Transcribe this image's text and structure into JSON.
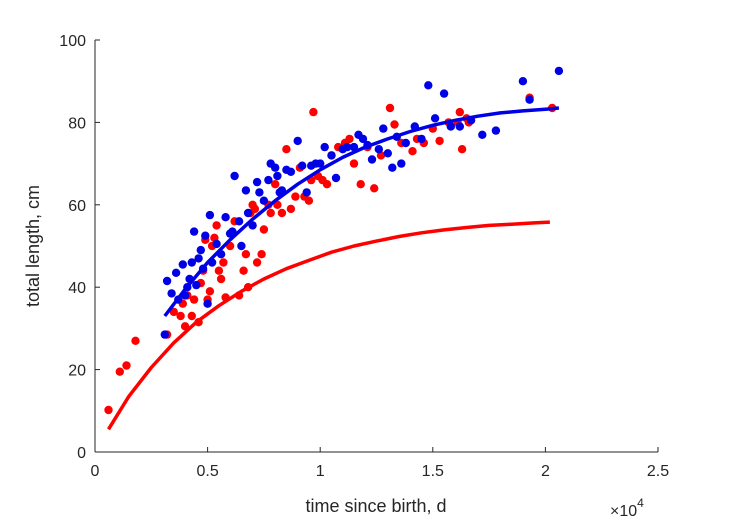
{
  "chart_data": {
    "type": "scatter",
    "title": "",
    "xlabel": "time since birth, d",
    "ylabel": "total length, cm",
    "x_multiplier_base": "×10",
    "x_multiplier_exponent": "4",
    "xlim": [
      0,
      25000
    ],
    "ylim": [
      0,
      100
    ],
    "x_ticks": [
      0,
      5000,
      10000,
      15000,
      20000,
      25000
    ],
    "x_tick_labels": [
      "0",
      "0.5",
      "1",
      "1.5",
      "2",
      "2.5"
    ],
    "y_ticks": [
      0,
      20,
      40,
      60,
      80,
      100
    ],
    "y_tick_labels": [
      "0",
      "20",
      "40",
      "60",
      "80",
      "100"
    ],
    "grid": false,
    "colors": {
      "red": "#ff0000",
      "blue": "#0000e6",
      "axis": "#262626"
    },
    "series": [
      {
        "kind": "points",
        "color": "red",
        "points": [
          [
            600,
            10.2
          ],
          [
            1100,
            19.5
          ],
          [
            1400,
            21
          ],
          [
            1800,
            27
          ],
          [
            3200,
            28.5
          ],
          [
            3500,
            34
          ],
          [
            3800,
            33
          ],
          [
            3900,
            36
          ],
          [
            4000,
            30.5
          ],
          [
            4100,
            38
          ],
          [
            4300,
            33
          ],
          [
            4400,
            37
          ],
          [
            4600,
            31.5
          ],
          [
            4700,
            41
          ],
          [
            4800,
            44
          ],
          [
            4900,
            51.5
          ],
          [
            5000,
            37
          ],
          [
            5100,
            39
          ],
          [
            5200,
            50
          ],
          [
            5300,
            52
          ],
          [
            5400,
            55
          ],
          [
            5500,
            44
          ],
          [
            5600,
            42
          ],
          [
            5700,
            46
          ],
          [
            5800,
            37.5
          ],
          [
            6000,
            50
          ],
          [
            6200,
            56
          ],
          [
            6400,
            38
          ],
          [
            6600,
            44
          ],
          [
            6700,
            48
          ],
          [
            6800,
            40
          ],
          [
            6900,
            58
          ],
          [
            7000,
            60
          ],
          [
            7100,
            59
          ],
          [
            7200,
            46
          ],
          [
            7400,
            48
          ],
          [
            7500,
            54
          ],
          [
            7700,
            60
          ],
          [
            7800,
            58
          ],
          [
            8000,
            65
          ],
          [
            8100,
            60
          ],
          [
            8300,
            58
          ],
          [
            8500,
            73.5
          ],
          [
            8700,
            59
          ],
          [
            8900,
            62
          ],
          [
            9100,
            69
          ],
          [
            9300,
            62
          ],
          [
            9500,
            61
          ],
          [
            9600,
            66
          ],
          [
            9700,
            82.5
          ],
          [
            9900,
            67
          ],
          [
            10100,
            66
          ],
          [
            10300,
            65
          ],
          [
            10500,
            72
          ],
          [
            10800,
            74
          ],
          [
            11100,
            75
          ],
          [
            11300,
            76
          ],
          [
            11500,
            70
          ],
          [
            11800,
            65
          ],
          [
            12100,
            74
          ],
          [
            12400,
            64
          ],
          [
            12700,
            72
          ],
          [
            13100,
            83.5
          ],
          [
            13300,
            79.5
          ],
          [
            13600,
            75
          ],
          [
            14100,
            73
          ],
          [
            14300,
            76
          ],
          [
            14600,
            75
          ],
          [
            15000,
            78.5
          ],
          [
            15300,
            75.5
          ],
          [
            15700,
            80
          ],
          [
            16100,
            80
          ],
          [
            16200,
            82.5
          ],
          [
            16300,
            73.5
          ],
          [
            16500,
            81
          ],
          [
            16600,
            80
          ],
          [
            19300,
            86
          ],
          [
            20300,
            83.5
          ]
        ]
      },
      {
        "kind": "points",
        "color": "blue",
        "points": [
          [
            3100,
            28.5
          ],
          [
            3200,
            41.5
          ],
          [
            3400,
            38.5
          ],
          [
            3600,
            43.5
          ],
          [
            3700,
            37
          ],
          [
            3900,
            45.5
          ],
          [
            4000,
            38
          ],
          [
            4100,
            40
          ],
          [
            4200,
            42
          ],
          [
            4300,
            46
          ],
          [
            4400,
            53.5
          ],
          [
            4500,
            40.5
          ],
          [
            4600,
            47
          ],
          [
            4700,
            49
          ],
          [
            4800,
            44.5
          ],
          [
            4900,
            52.5
          ],
          [
            5000,
            36
          ],
          [
            5100,
            57.5
          ],
          [
            5200,
            46
          ],
          [
            5400,
            50.5
          ],
          [
            5600,
            48
          ],
          [
            5800,
            57
          ],
          [
            6000,
            53
          ],
          [
            6100,
            53.5
          ],
          [
            6200,
            67
          ],
          [
            6400,
            56
          ],
          [
            6500,
            50
          ],
          [
            6700,
            63.5
          ],
          [
            6800,
            58
          ],
          [
            7000,
            55
          ],
          [
            7200,
            65.5
          ],
          [
            7300,
            63
          ],
          [
            7500,
            61
          ],
          [
            7700,
            66
          ],
          [
            7800,
            70
          ],
          [
            8000,
            69
          ],
          [
            8100,
            67
          ],
          [
            8200,
            63
          ],
          [
            8300,
            63.5
          ],
          [
            8500,
            68.5
          ],
          [
            8700,
            68
          ],
          [
            9000,
            75.5
          ],
          [
            9200,
            69.5
          ],
          [
            9400,
            63
          ],
          [
            9600,
            69.5
          ],
          [
            9800,
            70
          ],
          [
            10000,
            70
          ],
          [
            10200,
            74
          ],
          [
            10500,
            72
          ],
          [
            10700,
            66.5
          ],
          [
            11000,
            73.5
          ],
          [
            11200,
            74
          ],
          [
            11500,
            74
          ],
          [
            11700,
            77
          ],
          [
            11900,
            76
          ],
          [
            12100,
            74.5
          ],
          [
            12300,
            71
          ],
          [
            12600,
            73.5
          ],
          [
            12800,
            78.5
          ],
          [
            13000,
            72.5
          ],
          [
            13200,
            69
          ],
          [
            13400,
            76.5
          ],
          [
            13600,
            70
          ],
          [
            13800,
            75
          ],
          [
            14200,
            79
          ],
          [
            14500,
            76
          ],
          [
            14800,
            89
          ],
          [
            15100,
            81
          ],
          [
            15500,
            87
          ],
          [
            15800,
            79
          ],
          [
            16200,
            79
          ],
          [
            16700,
            80.5
          ],
          [
            17200,
            77
          ],
          [
            17800,
            78
          ],
          [
            19000,
            90
          ],
          [
            19300,
            85.5
          ],
          [
            20600,
            92.5
          ]
        ]
      },
      {
        "kind": "curve",
        "color": "red",
        "x": [
          600,
          1500,
          2500,
          3500,
          4500,
          5500,
          6500,
          7500,
          8500,
          9500,
          10500,
          11500,
          12500,
          13500,
          14500,
          15500,
          16500,
          17500,
          18500,
          19500,
          20200
        ],
        "y": [
          5.5,
          13.5,
          20.5,
          26.5,
          31.5,
          35.5,
          39,
          42,
          44.5,
          46.5,
          48.5,
          50,
          51.2,
          52.3,
          53.2,
          53.9,
          54.5,
          55,
          55.3,
          55.6,
          55.8
        ]
      },
      {
        "kind": "curve",
        "color": "blue",
        "x": [
          3100,
          4000,
          5000,
          6000,
          7000,
          8000,
          9000,
          10000,
          11000,
          12000,
          13000,
          14000,
          15000,
          16000,
          17000,
          18000,
          19000,
          20000,
          20600
        ],
        "y": [
          33,
          39.5,
          46,
          51.5,
          56.5,
          61,
          65,
          68.5,
          71.5,
          74,
          76,
          77.8,
          79.3,
          80.5,
          81.5,
          82.3,
          82.8,
          83.2,
          83.5
        ]
      }
    ]
  }
}
